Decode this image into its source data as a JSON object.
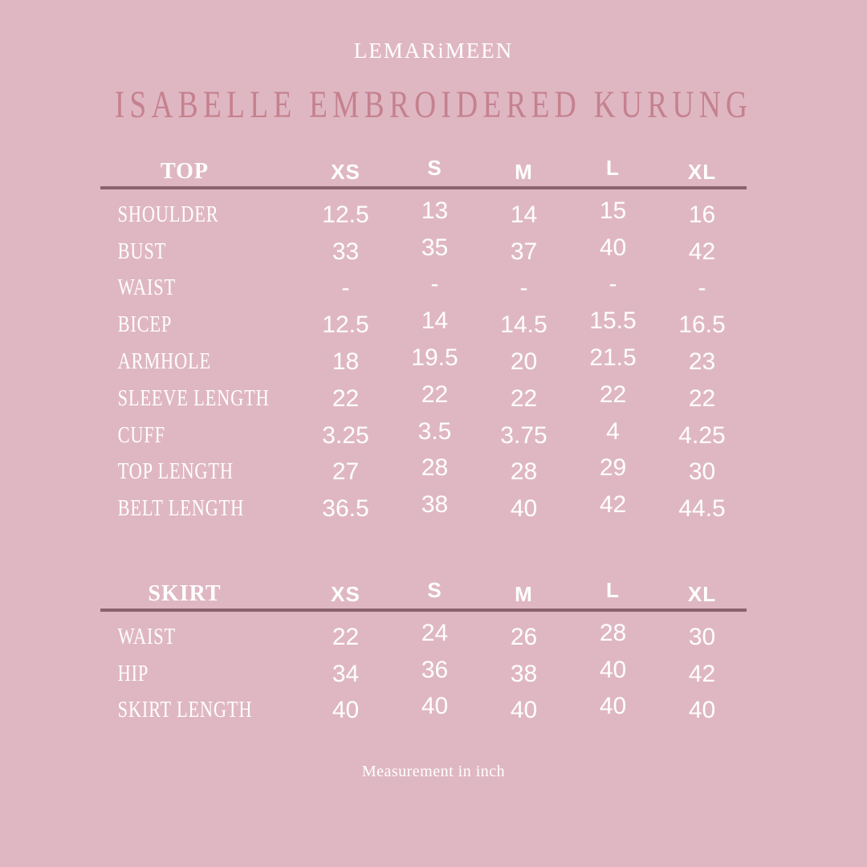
{
  "brand": "LEMARiMEEN",
  "title": "ISABELLE EMBROIDERED KURUNG",
  "footer_note": "Measurement in inch",
  "colors": {
    "background": "#dfb7c3",
    "title": "#c5818e",
    "divider": "#8c6270",
    "text": "#ffffff"
  },
  "chart_data": [
    {
      "type": "table",
      "title": "TOP",
      "columns": [
        "TOP",
        "XS",
        "S",
        "M",
        "L",
        "XL"
      ],
      "rows": [
        {
          "label": "SHOULDER",
          "values": [
            "12.5",
            "13",
            "14",
            "15",
            "16"
          ]
        },
        {
          "label": "BUST",
          "values": [
            "33",
            "35",
            "37",
            "40",
            "42"
          ]
        },
        {
          "label": "WAIST",
          "values": [
            "-",
            "-",
            "-",
            "-",
            "-"
          ]
        },
        {
          "label": "BICEP",
          "values": [
            "12.5",
            "14",
            "14.5",
            "15.5",
            "16.5"
          ]
        },
        {
          "label": "ARMHOLE",
          "values": [
            "18",
            "19.5",
            "20",
            "21.5",
            "23"
          ]
        },
        {
          "label": "SLEEVE LENGTH",
          "values": [
            "22",
            "22",
            "22",
            "22",
            "22"
          ]
        },
        {
          "label": "CUFF",
          "values": [
            "3.25",
            "3.5",
            "3.75",
            "4",
            "4.25"
          ]
        },
        {
          "label": "TOP LENGTH",
          "values": [
            "27",
            "28",
            "28",
            "29",
            "30"
          ]
        },
        {
          "label": "BELT LENGTH",
          "values": [
            "36.5",
            "38",
            "40",
            "42",
            "44.5"
          ]
        }
      ]
    },
    {
      "type": "table",
      "title": "SKIRT",
      "columns": [
        "SKIRT",
        "XS",
        "S",
        "M",
        "L",
        "XL"
      ],
      "rows": [
        {
          "label": "WAIST",
          "values": [
            "22",
            "24",
            "26",
            "28",
            "30"
          ]
        },
        {
          "label": "HIP",
          "values": [
            "34",
            "36",
            "38",
            "40",
            "42"
          ]
        },
        {
          "label": "SKIRT LENGTH",
          "values": [
            "40",
            "40",
            "40",
            "40",
            "40"
          ]
        }
      ]
    }
  ]
}
